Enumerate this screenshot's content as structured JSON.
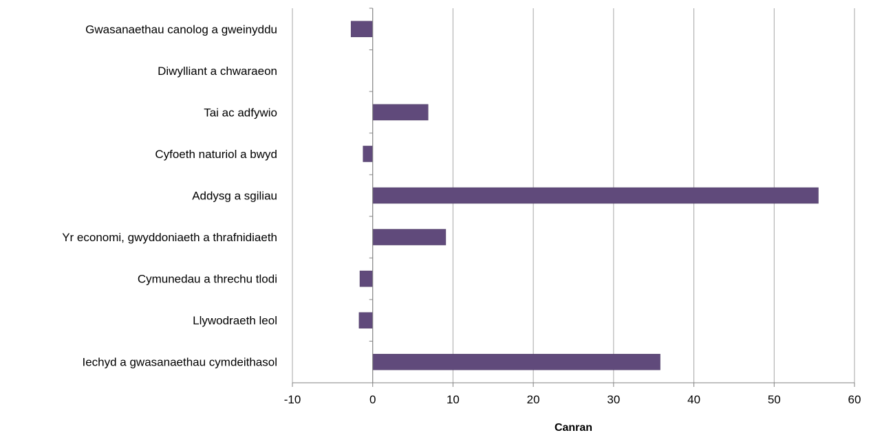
{
  "chart_data": {
    "type": "bar",
    "orientation": "horizontal",
    "title": "",
    "xlabel": "Canran",
    "ylabel": "",
    "xlim": [
      -10,
      60
    ],
    "x_ticks": [
      -10,
      0,
      10,
      20,
      30,
      40,
      50,
      60
    ],
    "grid": "vertical",
    "legend": "none",
    "bar_color": "#604a7b",
    "categories": [
      "Gwasanaethau canolog a gweinyddu",
      "Diwylliant a chwaraeon",
      "Tai ac adfywio",
      "Cyfoeth naturiol a bwyd ",
      "Addysg a sgiliau",
      "Yr economi, gwyddoniaeth a thrafnidiaeth",
      "Cymunedau a threchu tlodi",
      "Llywodraeth leol",
      "Iechyd a gwasanaethau cymdeithasol"
    ],
    "values": [
      -2.7,
      0,
      6.9,
      -1.2,
      55.5,
      9.1,
      -1.6,
      -1.7,
      35.8
    ]
  }
}
